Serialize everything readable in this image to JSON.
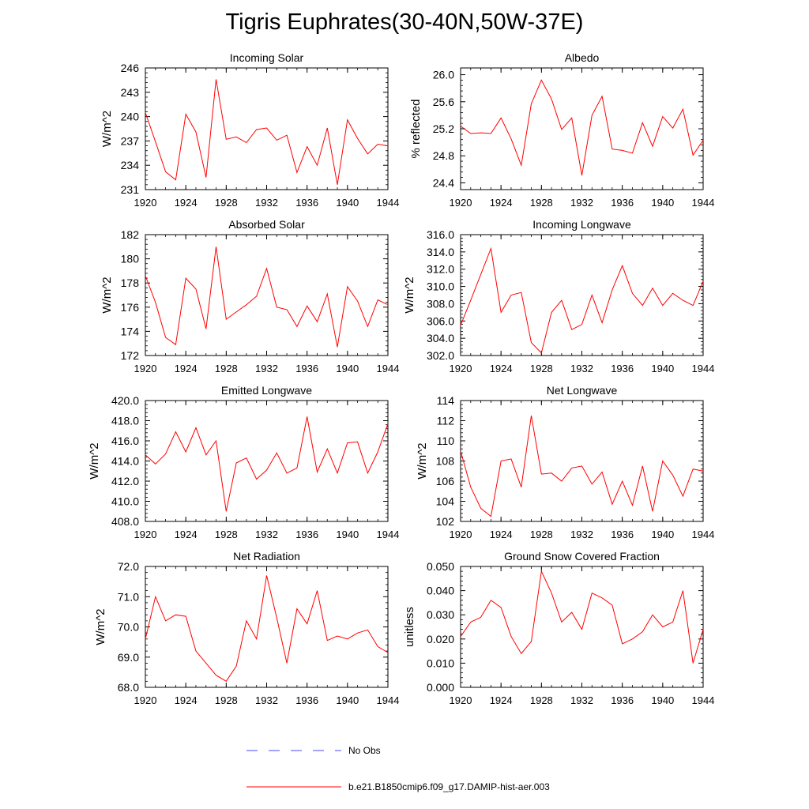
{
  "page": {
    "title": "Tigris Euphrates(30-40N,50W-37E)",
    "colors": {
      "model": "#ff0000",
      "obs": "#4a4aff",
      "axis": "#000000"
    }
  },
  "legend": {
    "obs_label": "No Obs",
    "model_label": "b.e21.B1850cmip6.f09_g17.DAMIP-hist-aer.003"
  },
  "chart_data": [
    {
      "type": "line",
      "title": "Incoming Solar",
      "xlabel": "",
      "ylabel": "W/m^2",
      "xlim": [
        1920,
        1944
      ],
      "ylim": [
        231,
        246
      ],
      "yticks": [
        231,
        234,
        237,
        240,
        243,
        246
      ],
      "ytick_labels": [
        "231",
        "234",
        "237",
        "240",
        "243",
        "246"
      ],
      "xticks": [
        1920,
        1924,
        1928,
        1932,
        1936,
        1940,
        1944
      ],
      "xtick_labels": [
        "1920",
        "1924",
        "1928",
        "1932",
        "1936",
        "1940",
        "1944"
      ],
      "x": [
        1920,
        1921,
        1922,
        1923,
        1924,
        1925,
        1926,
        1927,
        1928,
        1929,
        1930,
        1931,
        1932,
        1933,
        1934,
        1935,
        1936,
        1937,
        1938,
        1939,
        1940,
        1941,
        1942,
        1943,
        1944
      ],
      "series": [
        {
          "values": [
            240.5,
            236.9,
            233.2,
            232.2,
            240.3,
            238.1,
            232.5,
            244.6,
            237.2,
            237.5,
            236.8,
            238.4,
            238.6,
            237.1,
            237.7,
            233.1,
            236.3,
            234.0,
            238.6,
            231.6,
            239.6,
            237.3,
            235.4,
            236.6,
            236.4
          ]
        }
      ]
    },
    {
      "type": "line",
      "title": "Albedo",
      "xlabel": "",
      "ylabel": "% reflected",
      "xlim": [
        1920,
        1944
      ],
      "ylim": [
        24.3,
        26.1
      ],
      "yticks": [
        24.4,
        24.8,
        25.2,
        25.6,
        26.0
      ],
      "ytick_labels": [
        "24.4",
        "24.8",
        "25.2",
        "25.6",
        "26.0"
      ],
      "xticks": [
        1920,
        1924,
        1928,
        1932,
        1936,
        1940,
        1944
      ],
      "xtick_labels": [
        "1920",
        "1924",
        "1928",
        "1932",
        "1936",
        "1940",
        "1944"
      ],
      "x": [
        1920,
        1921,
        1922,
        1923,
        1924,
        1925,
        1926,
        1927,
        1928,
        1929,
        1930,
        1931,
        1932,
        1933,
        1934,
        1935,
        1936,
        1937,
        1938,
        1939,
        1940,
        1941,
        1942,
        1943,
        1944
      ],
      "series": [
        {
          "values": [
            25.24,
            25.13,
            25.14,
            25.13,
            25.36,
            25.05,
            24.66,
            25.57,
            25.92,
            25.64,
            25.19,
            25.36,
            24.51,
            25.4,
            25.68,
            24.9,
            24.88,
            24.84,
            25.29,
            24.94,
            25.38,
            25.21,
            25.49,
            24.81,
            25.03
          ]
        }
      ]
    },
    {
      "type": "line",
      "title": "Absorbed Solar",
      "xlabel": "",
      "ylabel": "W/m^2",
      "xlim": [
        1920,
        1944
      ],
      "ylim": [
        172,
        182
      ],
      "yticks": [
        172,
        174,
        176,
        178,
        180,
        182
      ],
      "ytick_labels": [
        "172",
        "174",
        "176",
        "178",
        "180",
        "182"
      ],
      "xticks": [
        1920,
        1924,
        1928,
        1932,
        1936,
        1940,
        1944
      ],
      "xtick_labels": [
        "1920",
        "1924",
        "1928",
        "1932",
        "1936",
        "1940",
        "1944"
      ],
      "x": [
        1920,
        1921,
        1922,
        1923,
        1924,
        1925,
        1926,
        1927,
        1928,
        1929,
        1930,
        1931,
        1932,
        1933,
        1934,
        1935,
        1936,
        1937,
        1938,
        1939,
        1940,
        1941,
        1942,
        1943,
        1944
      ],
      "series": [
        {
          "values": [
            178.6,
            176.4,
            173.5,
            172.9,
            178.4,
            177.5,
            174.2,
            181.0,
            175.0,
            175.6,
            176.2,
            176.9,
            179.2,
            176.0,
            175.8,
            174.4,
            176.1,
            174.8,
            177.1,
            172.7,
            177.7,
            176.5,
            174.4,
            176.6,
            176.2
          ]
        }
      ]
    },
    {
      "type": "line",
      "title": "Incoming Longwave",
      "xlabel": "",
      "ylabel": "W/m^2",
      "xlim": [
        1920,
        1944
      ],
      "ylim": [
        302,
        316
      ],
      "yticks": [
        302,
        304,
        306,
        308,
        310,
        312,
        314,
        316
      ],
      "ytick_labels": [
        "302.0",
        "304.0",
        "306.0",
        "308.0",
        "310.0",
        "312.0",
        "314.0",
        "316.0"
      ],
      "xticks": [
        1920,
        1924,
        1928,
        1932,
        1936,
        1940,
        1944
      ],
      "xtick_labels": [
        "1920",
        "1924",
        "1928",
        "1932",
        "1936",
        "1940",
        "1944"
      ],
      "x": [
        1920,
        1921,
        1922,
        1923,
        1924,
        1925,
        1926,
        1927,
        1928,
        1929,
        1930,
        1931,
        1932,
        1933,
        1934,
        1935,
        1936,
        1937,
        1938,
        1939,
        1940,
        1941,
        1942,
        1943,
        1944
      ],
      "series": [
        {
          "values": [
            305.5,
            308.4,
            311.4,
            314.4,
            307.0,
            309.0,
            309.3,
            303.5,
            302.3,
            307.0,
            308.4,
            305.0,
            305.6,
            309.0,
            305.8,
            309.6,
            312.4,
            309.2,
            307.8,
            309.8,
            307.8,
            309.2,
            308.4,
            307.8,
            310.6
          ]
        }
      ]
    },
    {
      "type": "line",
      "title": "Emitted Longwave",
      "xlabel": "",
      "ylabel": "W/m^2",
      "xlim": [
        1920,
        1944
      ],
      "ylim": [
        408,
        420
      ],
      "yticks": [
        408,
        410,
        412,
        414,
        416,
        418,
        420
      ],
      "ytick_labels": [
        "408.0",
        "410.0",
        "412.0",
        "414.0",
        "416.0",
        "418.0",
        "420.0"
      ],
      "xticks": [
        1920,
        1924,
        1928,
        1932,
        1936,
        1940,
        1944
      ],
      "xtick_labels": [
        "1920",
        "1924",
        "1928",
        "1932",
        "1936",
        "1940",
        "1944"
      ],
      "x": [
        1920,
        1921,
        1922,
        1923,
        1924,
        1925,
        1926,
        1927,
        1928,
        1929,
        1930,
        1931,
        1932,
        1933,
        1934,
        1935,
        1936,
        1937,
        1938,
        1939,
        1940,
        1941,
        1942,
        1943,
        1944
      ],
      "series": [
        {
          "values": [
            414.6,
            413.7,
            414.7,
            416.9,
            414.9,
            417.3,
            414.6,
            416.0,
            409.0,
            413.8,
            414.3,
            412.2,
            413.1,
            414.8,
            412.8,
            413.3,
            418.4,
            412.9,
            415.2,
            412.8,
            415.8,
            415.9,
            412.8,
            414.9,
            417.7
          ]
        }
      ]
    },
    {
      "type": "line",
      "title": "Net Longwave",
      "xlabel": "",
      "ylabel": "W/m^2",
      "xlim": [
        1920,
        1944
      ],
      "ylim": [
        102,
        114
      ],
      "yticks": [
        102,
        104,
        106,
        108,
        110,
        112,
        114
      ],
      "ytick_labels": [
        "102",
        "104",
        "106",
        "108",
        "110",
        "112",
        "114"
      ],
      "xticks": [
        1920,
        1924,
        1928,
        1932,
        1936,
        1940,
        1944
      ],
      "xtick_labels": [
        "1920",
        "1924",
        "1928",
        "1932",
        "1936",
        "1940",
        "1944"
      ],
      "x": [
        1920,
        1921,
        1922,
        1923,
        1924,
        1925,
        1926,
        1927,
        1928,
        1929,
        1930,
        1931,
        1932,
        1933,
        1934,
        1935,
        1936,
        1937,
        1938,
        1939,
        1940,
        1941,
        1942,
        1943,
        1944
      ],
      "series": [
        {
          "values": [
            109.0,
            105.4,
            103.3,
            102.5,
            108.0,
            108.2,
            105.4,
            112.5,
            106.7,
            106.8,
            106.0,
            107.3,
            107.5,
            105.7,
            106.9,
            103.7,
            106.0,
            103.6,
            107.5,
            103.0,
            108.0,
            106.6,
            104.5,
            107.2,
            107.0
          ]
        }
      ]
    },
    {
      "type": "line",
      "title": "Net Radiation",
      "xlabel": "",
      "ylabel": "W/m^2",
      "xlim": [
        1920,
        1944
      ],
      "ylim": [
        68,
        72
      ],
      "yticks": [
        68,
        69,
        70,
        71,
        72
      ],
      "ytick_labels": [
        "68.0",
        "69.0",
        "70.0",
        "71.0",
        "72.0"
      ],
      "xticks": [
        1920,
        1924,
        1928,
        1932,
        1936,
        1940,
        1944
      ],
      "xtick_labels": [
        "1920",
        "1924",
        "1928",
        "1932",
        "1936",
        "1940",
        "1944"
      ],
      "x": [
        1920,
        1921,
        1922,
        1923,
        1924,
        1925,
        1926,
        1927,
        1928,
        1929,
        1930,
        1931,
        1932,
        1933,
        1934,
        1935,
        1936,
        1937,
        1938,
        1939,
        1940,
        1941,
        1942,
        1943,
        1944
      ],
      "series": [
        {
          "values": [
            69.6,
            71.0,
            70.2,
            70.4,
            70.35,
            69.2,
            68.8,
            68.4,
            68.2,
            68.7,
            70.2,
            69.6,
            71.7,
            70.3,
            68.8,
            70.6,
            70.1,
            71.2,
            69.55,
            69.7,
            69.6,
            69.8,
            69.9,
            69.35,
            69.15
          ]
        }
      ]
    },
    {
      "type": "line",
      "title": "Ground Snow Covered Fraction",
      "xlabel": "",
      "ylabel": "unitless",
      "xlim": [
        1920,
        1944
      ],
      "ylim": [
        0,
        0.05
      ],
      "yticks": [
        0,
        0.01,
        0.02,
        0.03,
        0.04,
        0.05
      ],
      "ytick_labels": [
        "0.000",
        "0.010",
        "0.020",
        "0.030",
        "0.040",
        "0.050"
      ],
      "xticks": [
        1920,
        1924,
        1928,
        1932,
        1936,
        1940,
        1944
      ],
      "xtick_labels": [
        "1920",
        "1924",
        "1928",
        "1932",
        "1936",
        "1940",
        "1944"
      ],
      "x": [
        1920,
        1921,
        1922,
        1923,
        1924,
        1925,
        1926,
        1927,
        1928,
        1929,
        1930,
        1931,
        1932,
        1933,
        1934,
        1935,
        1936,
        1937,
        1938,
        1939,
        1940,
        1941,
        1942,
        1943,
        1944
      ],
      "series": [
        {
          "values": [
            0.021,
            0.027,
            0.029,
            0.036,
            0.033,
            0.021,
            0.014,
            0.019,
            0.048,
            0.039,
            0.027,
            0.031,
            0.024,
            0.039,
            0.037,
            0.034,
            0.018,
            0.02,
            0.023,
            0.03,
            0.025,
            0.027,
            0.04,
            0.01,
            0.024
          ]
        }
      ]
    }
  ]
}
